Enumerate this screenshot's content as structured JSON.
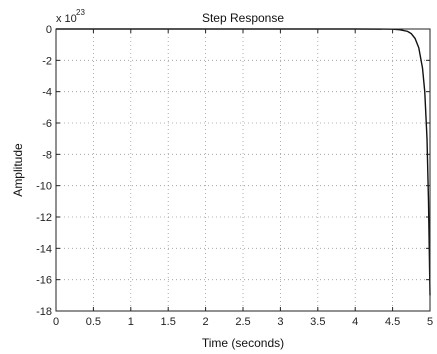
{
  "chart_data": {
    "type": "line",
    "title": "Step Response",
    "xlabel": "Time (seconds)",
    "ylabel": "Amplitude",
    "y_scale_note": "x 10",
    "y_scale_exponent": "23",
    "xlim": [
      0,
      5
    ],
    "ylim": [
      -18,
      0
    ],
    "grid": true,
    "x_ticks": [
      "0",
      "0.5",
      "1",
      "1.5",
      "2",
      "2.5",
      "3",
      "3.5",
      "4",
      "4.5",
      "5"
    ],
    "y_ticks": [
      "0",
      "-2",
      "-4",
      "-6",
      "-8",
      "-10",
      "-12",
      "-14",
      "-16",
      "-18"
    ],
    "series": [
      {
        "x": [
          0,
          0.5,
          1,
          1.5,
          2,
          2.5,
          3,
          3.5,
          4,
          4.5,
          4.6,
          4.7,
          4.75,
          4.8,
          4.85,
          4.9,
          4.93,
          4.96,
          4.98,
          5.0
        ],
        "y": [
          0,
          0,
          0,
          0,
          0,
          0,
          0,
          0,
          0,
          -0.01,
          -0.05,
          -0.15,
          -0.3,
          -0.6,
          -1.2,
          -2.5,
          -4.0,
          -7.0,
          -11.0,
          -17.0
        ]
      }
    ],
    "colors": {
      "line": "#111111",
      "grid": "#9a9a9a",
      "axes": "#222222"
    }
  }
}
